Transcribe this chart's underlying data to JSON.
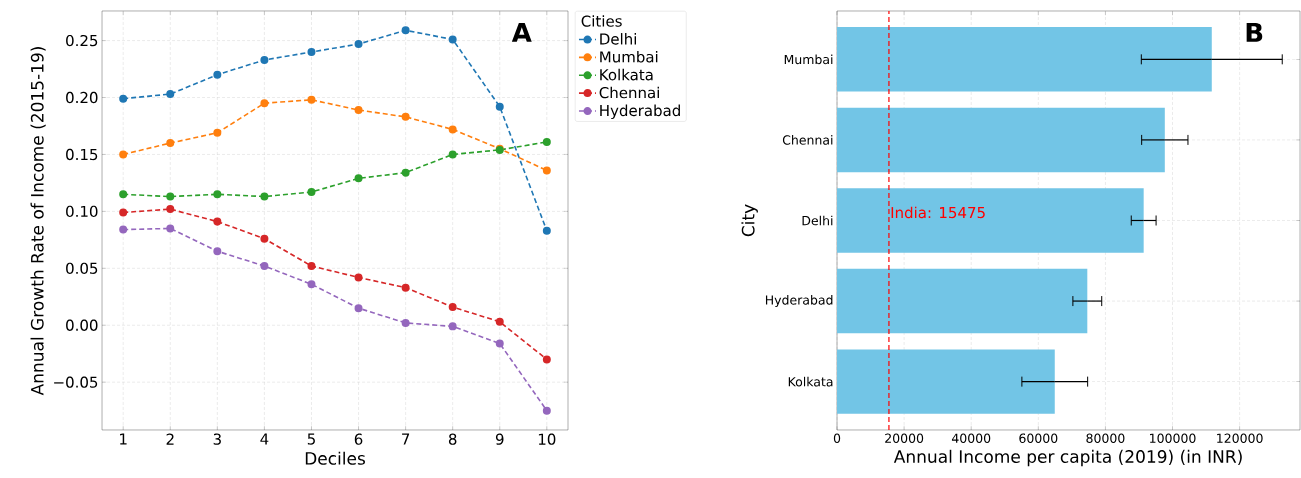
{
  "chart_data": [
    {
      "type": "line",
      "xlabel": "Deciles",
      "ylabel": "Annual Growth Rate of Income (2015-19)",
      "legend_title": "Cities",
      "legend": "top right",
      "grid": true,
      "marker": "circle",
      "line_style": "dashed",
      "annotations": [
        "A"
      ],
      "x": [
        1,
        2,
        3,
        4,
        5,
        6,
        7,
        8,
        9,
        10
      ],
      "xlim": [
        0.55,
        10.45
      ],
      "xticks": [
        1,
        2,
        3,
        4,
        5,
        6,
        7,
        8,
        9,
        10
      ],
      "ylim": [
        -0.092,
        0.276
      ],
      "yticks": [
        {
          "value": -0.05,
          "label": "−0.05"
        },
        {
          "value": 0,
          "label": "0.00"
        },
        {
          "value": 0.05,
          "label": "0.05"
        },
        {
          "value": 0.1,
          "label": "0.10"
        },
        {
          "value": 0.15,
          "label": "0.15"
        },
        {
          "value": 0.2,
          "label": "0.20"
        },
        {
          "value": 0.25,
          "label": "0.25"
        }
      ],
      "series": [
        {
          "name": "Delhi",
          "color": "#1f77b4",
          "values": [
            0.199,
            0.203,
            0.22,
            0.233,
            0.24,
            0.247,
            0.259,
            0.251,
            0.192,
            0.083
          ]
        },
        {
          "name": "Mumbai",
          "color": "#ff7f0e",
          "values": [
            0.15,
            0.16,
            0.169,
            0.195,
            0.198,
            0.189,
            0.183,
            0.172,
            0.155,
            0.136
          ]
        },
        {
          "name": "Kolkata",
          "color": "#2ca02c",
          "values": [
            0.115,
            0.113,
            0.115,
            0.113,
            0.117,
            0.129,
            0.134,
            0.15,
            0.154,
            0.161
          ]
        },
        {
          "name": "Chennai",
          "color": "#d62728",
          "values": [
            0.099,
            0.102,
            0.091,
            0.076,
            0.052,
            0.042,
            0.033,
            0.016,
            0.003,
            -0.03
          ]
        },
        {
          "name": "Hyderabad",
          "color": "#9467bd",
          "values": [
            0.084,
            0.085,
            0.065,
            0.052,
            0.036,
            0.015,
            0.002,
            -0.001,
            -0.016,
            -0.075
          ]
        }
      ]
    },
    {
      "type": "bar",
      "orientation": "horizontal",
      "xlabel": "Annual Income per capita (2019) (in INR)",
      "ylabel": "City",
      "grid": true,
      "annotations": [
        "B"
      ],
      "categories": [
        "Mumbai",
        "Chennai",
        "Delhi",
        "Hyderabad",
        "Kolkata"
      ],
      "values": [
        111700,
        97700,
        91400,
        74600,
        64900
      ],
      "errors": [
        21000,
        6900,
        3700,
        4300,
        9800
      ],
      "color": "#72c5e6",
      "xlim": [
        0,
        138000
      ],
      "xticks": [
        0,
        20000,
        40000,
        60000,
        80000,
        100000,
        120000
      ],
      "ref_lines": [
        {
          "axis": "x",
          "value": 15475,
          "label": "India: 15475",
          "color": "#ff0000",
          "line_style": "dashed"
        }
      ]
    }
  ]
}
